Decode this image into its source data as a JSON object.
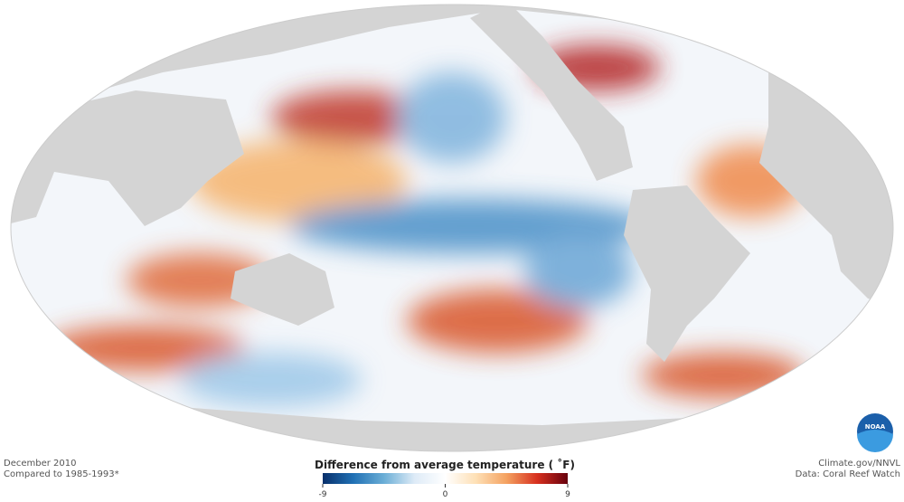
{
  "map": {
    "caption": {
      "date": "December 2010",
      "baseline": "Compared to 1985-1993*"
    },
    "credits": {
      "source": "Climate.gov/NNVL",
      "data": "Data: Coral Reef Watch"
    },
    "logo": "NOAA",
    "legend": {
      "title": "Difference from average temperature ( ˚F)",
      "range": [
        -9,
        9
      ],
      "ticks": [
        -9,
        0,
        9
      ],
      "colors": [
        "#08306b",
        "#2171b5",
        "#6baed6",
        "#deebf7",
        "#ffffff",
        "#fee0b6",
        "#f4a261",
        "#d7301f",
        "#67000d"
      ]
    }
  }
}
